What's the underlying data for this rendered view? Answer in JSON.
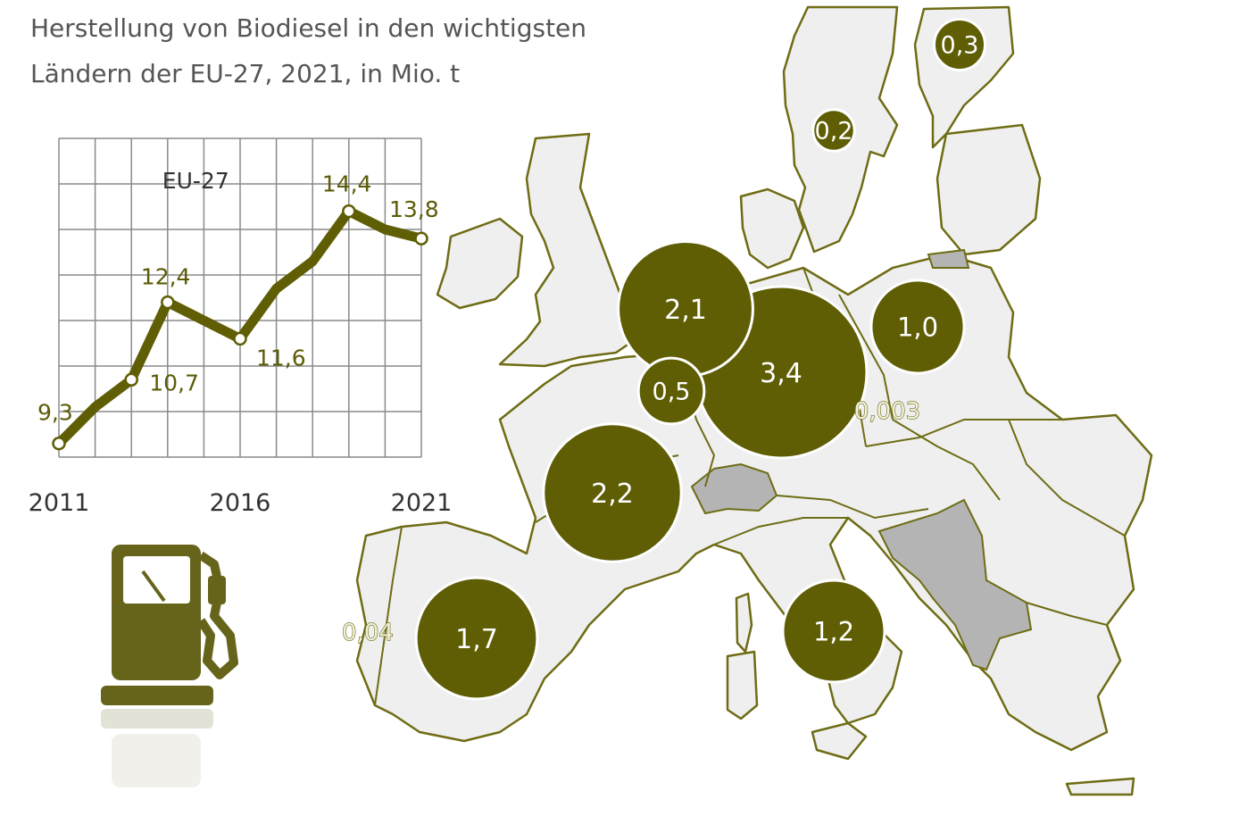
{
  "title": "Herstellung von Biodiesel in den wichtigsten\nLändern der EU-27, 2021, in Mio. t",
  "colors": {
    "accent": "#5f5e05",
    "land": "#efefef",
    "border": "#6e6c14",
    "non_eu": "#b4b4b4"
  },
  "icon": "fuel-pump-icon",
  "chart_data": [
    {
      "type": "line",
      "title": "",
      "series": [
        {
          "name": "EU-27",
          "x": [
            2011,
            2012,
            2013,
            2014,
            2015,
            2016,
            2017,
            2018,
            2019,
            2020,
            2021
          ],
          "values": [
            9.3,
            10.1,
            10.7,
            12.4,
            12.0,
            11.6,
            12.7,
            13.3,
            14.4,
            14.0,
            13.8
          ]
        }
      ],
      "labelled_points": [
        {
          "x": 2011,
          "label": "9,3"
        },
        {
          "x": 2013,
          "label": "10,7"
        },
        {
          "x": 2014,
          "label": "12,4"
        },
        {
          "x": 2016,
          "label": "11,6"
        },
        {
          "x": 2019,
          "label": "14,4"
        },
        {
          "x": 2021,
          "label": "13,8"
        }
      ],
      "x_tick_labels": [
        "2011",
        "2016",
        "2021"
      ],
      "xlim": [
        2011,
        2021
      ],
      "ylim": [
        9.0,
        16.0
      ],
      "grid": true,
      "xlabel": "",
      "ylabel": ""
    },
    {
      "type": "bubble-map",
      "unit": "Mio. t",
      "countries": [
        {
          "country": "Deutschland",
          "value": 3.4,
          "label": "3,4"
        },
        {
          "country": "Frankreich",
          "value": 2.2,
          "label": "2,2"
        },
        {
          "country": "Niederlande",
          "value": 2.1,
          "label": "2,1"
        },
        {
          "country": "Spanien",
          "value": 1.7,
          "label": "1,7"
        },
        {
          "country": "Italien",
          "value": 1.2,
          "label": "1,2"
        },
        {
          "country": "Polen",
          "value": 1.0,
          "label": "1,0"
        },
        {
          "country": "Belgien",
          "value": 0.5,
          "label": "0,5"
        },
        {
          "country": "Finnland",
          "value": 0.3,
          "label": "0,3"
        },
        {
          "country": "Schweden",
          "value": 0.2,
          "label": "0,2"
        },
        {
          "country": "Portugal",
          "value": 0.04,
          "label": "0,04"
        },
        {
          "country": "Tschechien",
          "value": 0.003,
          "label": "0,003"
        }
      ]
    }
  ]
}
